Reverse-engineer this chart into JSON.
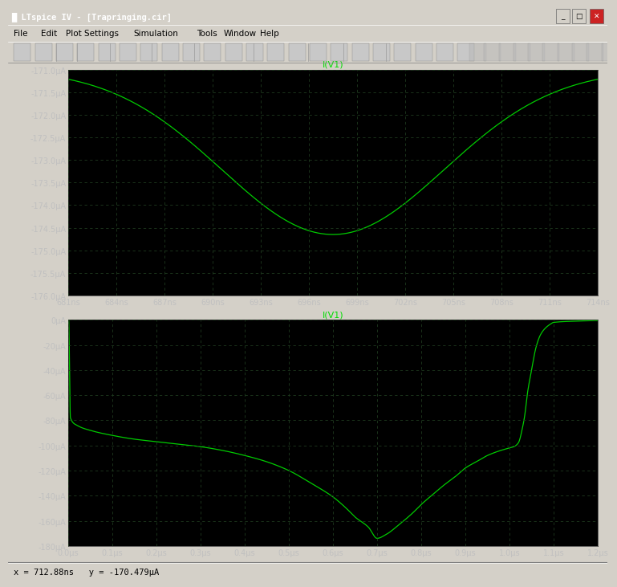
{
  "bg_outer": "#d4d0c8",
  "titlebar_color": "#0a246a",
  "titlebar_text_color": "#ffffff",
  "menu_bg": "#d4d0c8",
  "toolbar_bg": "#d4d0c8",
  "plot_area_bg": "#000000",
  "plot_bg": "#000000",
  "grid_color": "#1a4a1a",
  "curve_color": "#00cc00",
  "title_color": "#00dd00",
  "tick_label_color": "#c0c0c0",
  "statusbar_text": "x = 712.88ns   y = -170.479μA",
  "window_title": "LTspice IV - [Trapringing.cir]",
  "top_plot": {
    "title": "I(V1)",
    "xmin_ns": 681,
    "xmax_ns": 714,
    "ymin_uA": -176.0,
    "ymax_uA": -171.0,
    "ytick_vals": [
      -176.0,
      -175.5,
      -175.0,
      -174.5,
      -174.0,
      -173.5,
      -173.0,
      -172.5,
      -172.0,
      -171.5,
      -171.0
    ],
    "ytick_labels": [
      "-176.0μA",
      "-175.5μA",
      "-175.0μA",
      "-174.5μA",
      "-174.0μA",
      "-173.5μA",
      "-173.0μA",
      "-172.5μA",
      "-172.0μA",
      "-171.5μA",
      "-171.0μA"
    ],
    "xtick_vals_ns": [
      681,
      684,
      687,
      690,
      693,
      696,
      699,
      702,
      705,
      708,
      711,
      714
    ],
    "xtick_labels": [
      "681ns",
      "684ns",
      "687ns",
      "690ns",
      "693ns",
      "696ns",
      "699ns",
      "702ns",
      "705ns",
      "708ns",
      "711ns",
      "714ns"
    ]
  },
  "bot_plot": {
    "title": "I(V1)",
    "xmin_us": 0.0,
    "xmax_us": 1.2,
    "ymin_uA": -180,
    "ymax_uA": 0,
    "ytick_vals": [
      0,
      -20,
      -40,
      -60,
      -80,
      -100,
      -120,
      -140,
      -160,
      -180
    ],
    "ytick_labels": [
      "0μA",
      "-20μA",
      "-40μA",
      "-60μA",
      "-80μA",
      "-100μA",
      "-120μA",
      "-140μA",
      "-160μA",
      "-180μA"
    ],
    "xtick_vals_us": [
      0.0,
      0.1,
      0.2,
      0.3,
      0.4,
      0.5,
      0.6,
      0.7,
      0.8,
      0.9,
      1.0,
      1.1,
      1.2
    ],
    "xtick_labels": [
      "0.0μs",
      "0.1μs",
      "0.2μs",
      "0.3μs",
      "0.4μs",
      "0.5μs",
      "0.6μs",
      "0.7μs",
      "0.8μs",
      "0.9μs",
      "1.0μs",
      "1.1μs",
      "1.2μs"
    ]
  }
}
